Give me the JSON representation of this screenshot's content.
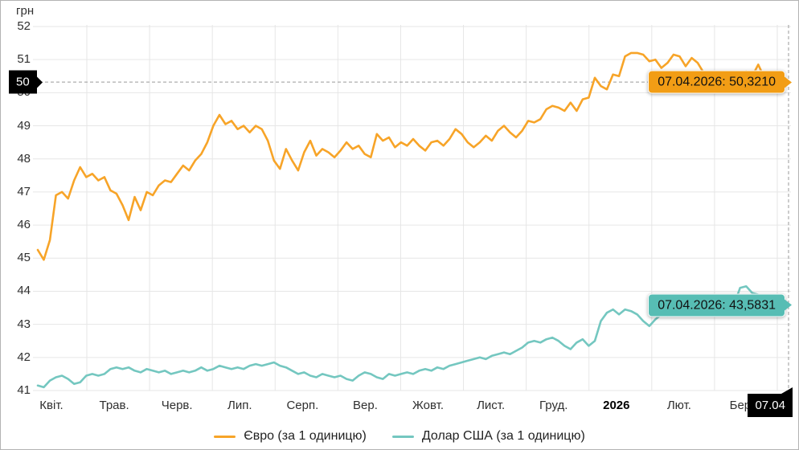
{
  "chart_data": {
    "type": "line",
    "title": "",
    "ylabel": "грн",
    "ylim": [
      41,
      52
    ],
    "yticks": [
      41,
      42,
      43,
      44,
      45,
      46,
      47,
      48,
      49,
      50,
      51,
      52
    ],
    "x_labels": [
      "Квіт.",
      "Трав.",
      "Черв.",
      "Лип.",
      "Серп.",
      "Вер.",
      "Жовт.",
      "Лист.",
      "Груд.",
      "2026",
      "Лют.",
      "Бер."
    ],
    "bold_x_label": "2026",
    "grid": true,
    "legend_position": "bottom",
    "series": [
      {
        "name": "Євро (за 1 одиницю)",
        "color": "#F7A428",
        "values": [
          45.25,
          44.95,
          45.55,
          46.9,
          47.0,
          46.8,
          47.35,
          47.75,
          47.45,
          47.55,
          47.35,
          47.45,
          47.05,
          46.95,
          46.6,
          46.15,
          46.85,
          46.45,
          47.0,
          46.9,
          47.2,
          47.35,
          47.3,
          47.55,
          47.8,
          47.65,
          47.95,
          48.15,
          48.5,
          49.0,
          49.33,
          49.05,
          49.15,
          48.9,
          49.0,
          48.8,
          49.0,
          48.9,
          48.55,
          47.95,
          47.7,
          48.3,
          47.95,
          47.65,
          48.2,
          48.55,
          48.1,
          48.3,
          48.2,
          48.05,
          48.25,
          48.5,
          48.3,
          48.4,
          48.15,
          48.05,
          48.75,
          48.55,
          48.65,
          48.35,
          48.5,
          48.4,
          48.6,
          48.4,
          48.25,
          48.5,
          48.55,
          48.4,
          48.6,
          48.9,
          48.75,
          48.5,
          48.35,
          48.5,
          48.7,
          48.55,
          48.85,
          49.0,
          48.8,
          48.65,
          48.85,
          49.15,
          49.1,
          49.2,
          49.5,
          49.6,
          49.55,
          49.45,
          49.7,
          49.45,
          49.8,
          49.85,
          50.45,
          50.2,
          50.1,
          50.55,
          50.5,
          51.1,
          51.2,
          51.2,
          51.15,
          50.95,
          51.0,
          50.75,
          50.9,
          51.15,
          51.1,
          50.8,
          51.05,
          50.9,
          50.6,
          50.3,
          50.5,
          50.25,
          50.25,
          50.6,
          50.35,
          50.65,
          50.5,
          50.85,
          50.45,
          50.2,
          50.55,
          50.25,
          50.321
        ]
      },
      {
        "name": "Долар США (за 1 одиницю)",
        "color": "#74C7C0",
        "values": [
          41.15,
          41.1,
          41.3,
          41.4,
          41.45,
          41.35,
          41.2,
          41.25,
          41.45,
          41.5,
          41.45,
          41.5,
          41.65,
          41.7,
          41.65,
          41.7,
          41.6,
          41.55,
          41.65,
          41.6,
          41.55,
          41.6,
          41.5,
          41.55,
          41.6,
          41.55,
          41.6,
          41.7,
          41.6,
          41.65,
          41.75,
          41.7,
          41.65,
          41.7,
          41.65,
          41.75,
          41.8,
          41.75,
          41.8,
          41.85,
          41.75,
          41.7,
          41.6,
          41.5,
          41.55,
          41.45,
          41.4,
          41.5,
          41.45,
          41.4,
          41.45,
          41.35,
          41.3,
          41.45,
          41.55,
          41.5,
          41.4,
          41.35,
          41.5,
          41.45,
          41.5,
          41.55,
          41.5,
          41.6,
          41.65,
          41.6,
          41.7,
          41.65,
          41.75,
          41.8,
          41.85,
          41.9,
          41.95,
          42.0,
          41.95,
          42.05,
          42.1,
          42.15,
          42.1,
          42.2,
          42.3,
          42.45,
          42.5,
          42.45,
          42.55,
          42.6,
          42.5,
          42.35,
          42.25,
          42.45,
          42.55,
          42.35,
          42.5,
          43.1,
          43.35,
          43.45,
          43.3,
          43.45,
          43.4,
          43.3,
          43.1,
          42.95,
          43.15,
          43.3,
          43.25,
          43.4,
          43.35,
          43.3,
          43.45,
          43.4,
          43.5,
          43.45,
          43.55,
          43.5,
          43.55,
          43.6,
          44.1,
          44.15,
          43.95,
          43.9,
          43.6,
          43.55,
          43.65,
          43.6,
          43.5831
        ]
      }
    ],
    "tooltips": [
      {
        "text": "07.04.2026: 50,3210",
        "color": "#F29D15"
      },
      {
        "text": "07.04.2026: 43,5831",
        "color": "#57BDB4"
      }
    ],
    "crosshair": {
      "y_badge": "50",
      "x_badge": "07.04",
      "y_value": 50.321
    },
    "colors": {
      "grid": "#e6e6e6",
      "dashed": "#9a9a9a",
      "axis_text": "#2f2f2f"
    }
  }
}
